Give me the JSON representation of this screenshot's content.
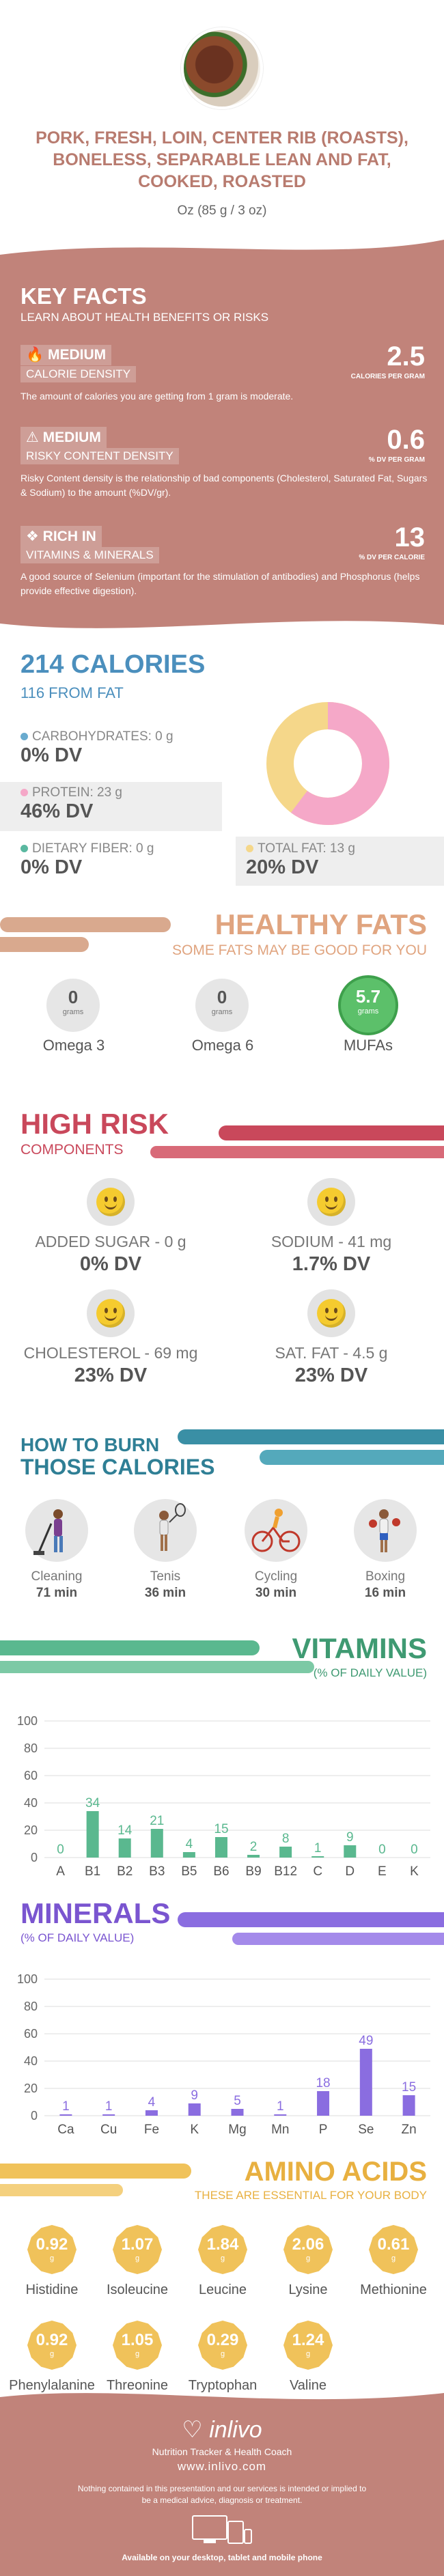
{
  "food": {
    "title": "PORK, FRESH, LOIN, CENTER RIB (ROASTS), BONELESS, SEPARABLE LEAN AND FAT, COOKED, ROASTED",
    "serving": "Oz (85 g / 3 oz)"
  },
  "key_facts": {
    "title": "KEY FACTS",
    "subtitle": "LEARN ABOUT HEALTH BENEFITS OR RISKS",
    "calorie_density": {
      "level": "MEDIUM",
      "label": "CALORIE DENSITY",
      "value": "2.5",
      "unit": "CALORIES PER GRAM",
      "desc": "The amount of calories you are getting from 1 gram is moderate."
    },
    "risky_content": {
      "level": "MEDIUM",
      "label": "RISKY CONTENT DENSITY",
      "value": "0.6",
      "unit": "% DV PER GRAM",
      "desc": "Risky Content density is the relationship of bad components (Cholesterol, Saturated Fat, Sugars & Sodium) to the amount (%DV/gr)."
    },
    "rich_in": {
      "level": "RICH  IN",
      "label": "VITAMINS & MINERALS",
      "value": "13",
      "unit": "% DV PER CALORIE",
      "desc": "A good source of Selenium (important for the stimulation of antibodies) and Phosphorus (helps provide effective digestion)."
    }
  },
  "calories": {
    "title": "214 CALORIES",
    "from_fat": "116 FROM FAT",
    "carbs": {
      "label": "CARBOHYDRATES: 0 g",
      "dv": "0% DV",
      "color": "#6aabcf"
    },
    "protein": {
      "label": "PROTEIN: 23 g",
      "dv": "46% DV",
      "color": "#f5a8c8"
    },
    "fiber": {
      "label": "DIETARY FIBER: 0 g",
      "dv": "0% DV",
      "color": "#5ab8a0"
    },
    "fat": {
      "label": "TOTAL FAT: 13 g",
      "dv": "20% DV",
      "color": "#f5d78a"
    }
  },
  "healthy_fats": {
    "title": "HEALTHY FATS",
    "subtitle": "SOME FATS MAY BE GOOD FOR YOU",
    "items": [
      {
        "value": "0",
        "unit": "grams",
        "name": "Omega 3"
      },
      {
        "value": "0",
        "unit": "grams",
        "name": "Omega 6"
      },
      {
        "value": "5.7",
        "unit": "grams",
        "name": "MUFAs"
      }
    ]
  },
  "high_risk": {
    "title": "HIGH RISK",
    "subtitle": "COMPONENTS",
    "items": [
      {
        "label": "ADDED SUGAR - 0 g",
        "dv": "0% DV"
      },
      {
        "label": "SODIUM - 41 mg",
        "dv": "1.7% DV"
      },
      {
        "label": "CHOLESTEROL - 69 mg",
        "dv": "23% DV"
      },
      {
        "label": "SAT. FAT - 4.5 g",
        "dv": "23% DV"
      }
    ]
  },
  "burn": {
    "title_line1": "HOW TO BURN",
    "title_line2": "THOSE CALORIES",
    "items": [
      {
        "name": "Cleaning",
        "minutes": "71 min",
        "icon": "cleaning-icon"
      },
      {
        "name": "Tenis",
        "minutes": "36 min",
        "icon": "tennis-icon"
      },
      {
        "name": "Cycling",
        "minutes": "30 min",
        "icon": "cycling-icon"
      },
      {
        "name": "Boxing",
        "minutes": "16 min",
        "icon": "boxing-icon"
      }
    ]
  },
  "vitamins": {
    "title": "VITAMINS",
    "subtitle": "(% OF DAILY VALUE)",
    "chart_data": {
      "type": "bar",
      "categories": [
        "A",
        "B1",
        "B2",
        "B3",
        "B5",
        "B6",
        "B9",
        "B12",
        "C",
        "D",
        "E",
        "K"
      ],
      "values": [
        0,
        34,
        14,
        21,
        4,
        15,
        2,
        8,
        1,
        9,
        0,
        0
      ],
      "ylim": [
        0,
        100
      ],
      "yticks": [
        0,
        20,
        40,
        60,
        80,
        100
      ],
      "bar_color": "#5ab88f",
      "label_color": "#5ab88f"
    }
  },
  "minerals": {
    "title": "MINERALS",
    "subtitle": "(% OF DAILY VALUE)",
    "chart_data": {
      "type": "bar",
      "categories": [
        "Ca",
        "Cu",
        "Fe",
        "K",
        "Mg",
        "Mn",
        "P",
        "Se",
        "Zn"
      ],
      "values": [
        1,
        1,
        4,
        9,
        5,
        1,
        18,
        49,
        15
      ],
      "ylim": [
        0,
        100
      ],
      "yticks": [
        0,
        20,
        40,
        60,
        80,
        100
      ],
      "bar_color": "#8a6de0",
      "label_color": "#8a6de0"
    }
  },
  "amino": {
    "title": "AMINO ACIDS",
    "subtitle": "THESE ARE ESSENTIAL FOR YOUR BODY",
    "unit": "g",
    "items": [
      {
        "value": "0.92",
        "name": "Histidine"
      },
      {
        "value": "1.07",
        "name": "Isoleucine"
      },
      {
        "value": "1.84",
        "name": "Leucine"
      },
      {
        "value": "2.06",
        "name": "Lysine"
      },
      {
        "value": "0.61",
        "name": "Methionine"
      },
      {
        "value": "0.92",
        "name": "Phenylalanine"
      },
      {
        "value": "1.05",
        "name": "Threonine"
      },
      {
        "value": "0.29",
        "name": "Tryptophan"
      },
      {
        "value": "1.24",
        "name": "Valine"
      }
    ]
  },
  "footer": {
    "brand": "inlivo",
    "tagline": "Nutrition Tracker & Health Coach",
    "url": "www.inlivo.com",
    "disclaimer": "Nothing contained in this presentation and our services is intended or implied to be a medical advice, diagnosis or treatment.",
    "devices": "Available on your desktop, tablet and mobile phone"
  }
}
